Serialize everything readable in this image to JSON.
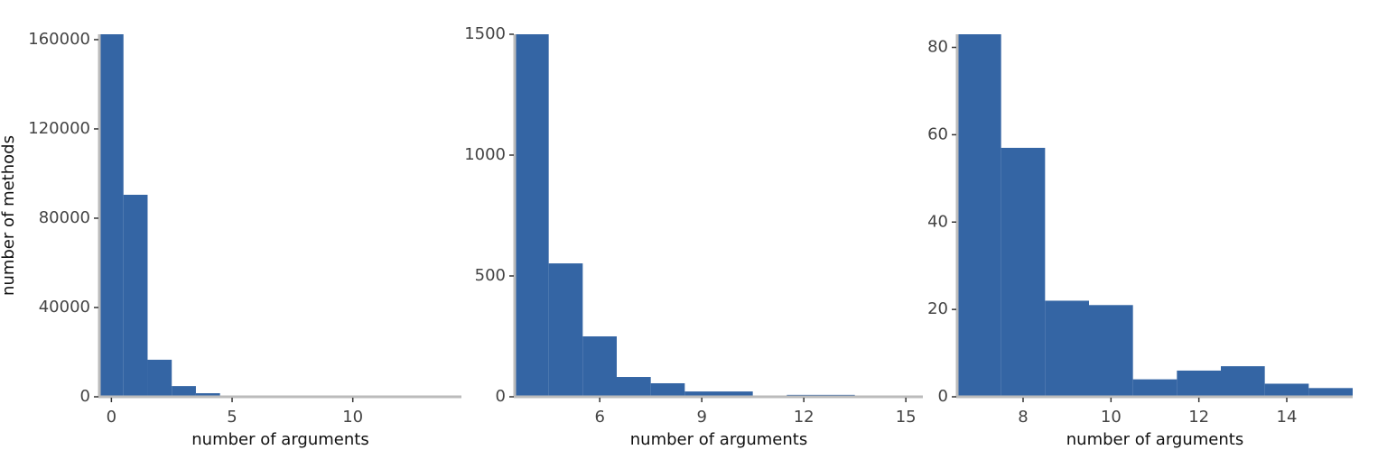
{
  "chart_data": [
    {
      "type": "histogram",
      "color": "#3465a4",
      "bins": [
        -0.5,
        0.5,
        1.5,
        2.5,
        3.5,
        4.5,
        5.5,
        6.5,
        7.5,
        8.5,
        9.5,
        10.5,
        11.5,
        12.5,
        13.5,
        14.5
      ],
      "values": [
        162400,
        90500,
        16600,
        4800,
        1600,
        300,
        200,
        100,
        80,
        50,
        40,
        30,
        20,
        20,
        10
      ],
      "xlim": [
        -0.5,
        14.5
      ],
      "ylim": [
        0,
        162400
      ],
      "xticks": [
        0,
        5,
        10
      ],
      "yticks": [
        0,
        40000,
        80000,
        120000,
        160000
      ],
      "xlabel": "number of arguments",
      "ylabel": "number of methods"
    },
    {
      "type": "histogram",
      "color": "#3465a4",
      "bins": [
        3.5,
        4.5,
        5.5,
        6.5,
        7.5,
        8.5,
        9.5,
        10.5,
        11.5,
        12.5,
        13.5,
        14.5,
        15.5
      ],
      "values": [
        1500,
        552,
        250,
        82,
        56,
        22,
        22,
        3,
        8,
        8,
        3,
        3
      ],
      "xlim": [
        3.5,
        15.5
      ],
      "ylim": [
        0,
        1500
      ],
      "xticks": [
        6,
        9,
        12,
        15
      ],
      "yticks": [
        0,
        500,
        1000,
        1500
      ],
      "xlabel": "number of arguments"
    },
    {
      "type": "histogram",
      "color": "#3465a4",
      "bins": [
        6.5,
        7.5,
        8.5,
        9.5,
        10.5,
        11.5,
        12.5,
        13.5,
        14.5,
        15.5
      ],
      "values": [
        83,
        57,
        22,
        21,
        4,
        6,
        7,
        3,
        2
      ],
      "xlim": [
        6.5,
        15.5
      ],
      "ylim": [
        0,
        83
      ],
      "xticks": [
        8,
        10,
        12,
        14
      ],
      "yticks": [
        0,
        20,
        40,
        60,
        80
      ],
      "xlabel": "number of arguments"
    }
  ]
}
